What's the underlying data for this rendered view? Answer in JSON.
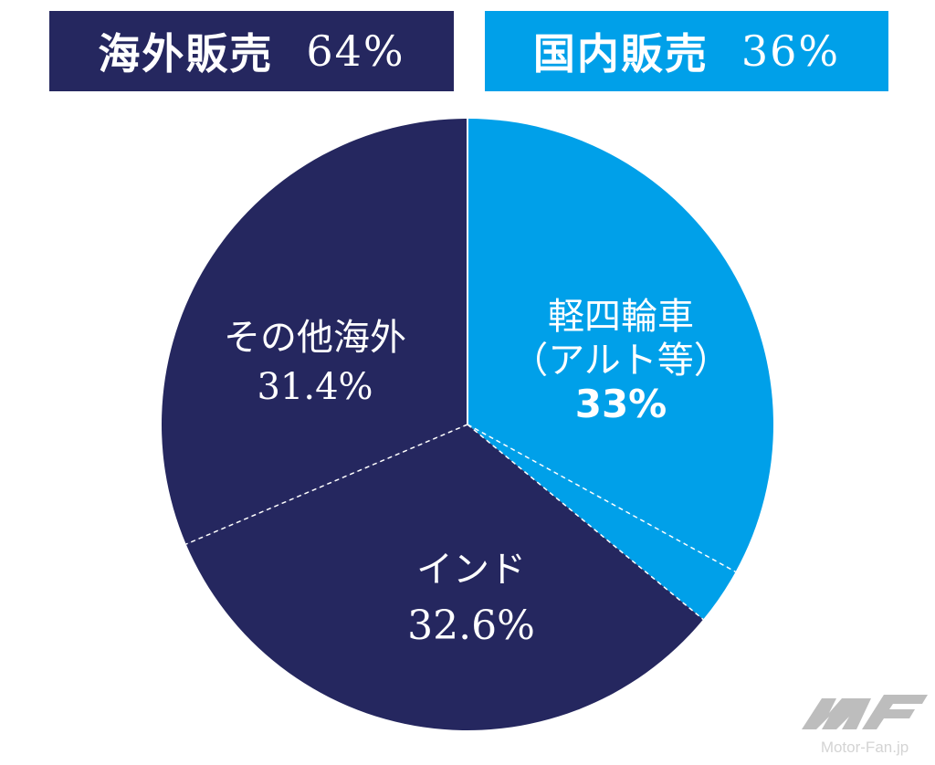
{
  "chart_data": {
    "type": "pie",
    "title": "",
    "groups": [
      {
        "label": "海外販売",
        "value": 64,
        "value_text": "64%",
        "color": "#25275f"
      },
      {
        "label": "国内販売",
        "value": 36,
        "value_text": "36%",
        "color": "#00a0e9"
      }
    ],
    "slices": [
      {
        "label": "軽四輪車",
        "sublabel": "（アルト等）",
        "value": 33,
        "value_text": "33%",
        "color": "#00a0e9"
      },
      {
        "label": "",
        "value": 3,
        "value_text": "",
        "color": "#00a0e9"
      },
      {
        "label": "インド",
        "value": 32.6,
        "value_text": "32.6%",
        "color": "#25275f"
      },
      {
        "label": "その他海外",
        "value": 31.4,
        "value_text": "31.4%",
        "color": "#25275f"
      }
    ],
    "start": "top",
    "direction": "clockwise"
  },
  "watermark": {
    "text": "Motor-Fan.jp"
  }
}
